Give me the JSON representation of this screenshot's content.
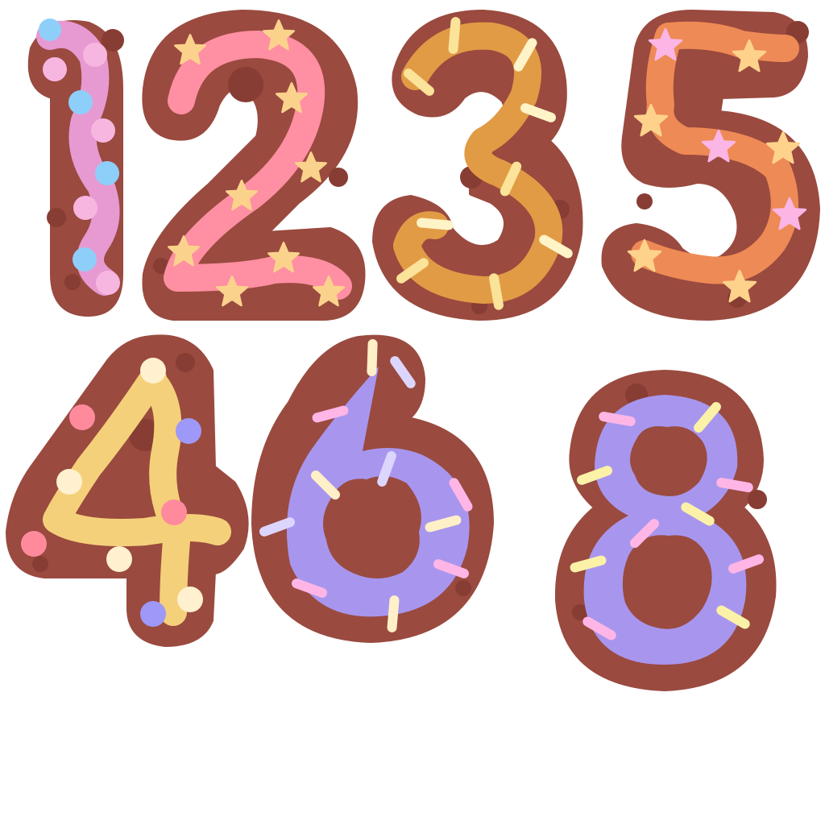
{
  "image": {
    "description_free": true
  },
  "palette": {
    "cookie": "#9A4A3F",
    "cookie_spot": "#873D33",
    "background": "#FFFFFF"
  },
  "numerals": [
    {
      "char": "1",
      "icing": "#E79AD1",
      "topping": "dots",
      "topping_colors": [
        "#8ECFFA",
        "#F7B6E0"
      ]
    },
    {
      "char": "2",
      "icing": "#FF8FA2",
      "topping": "stars",
      "topping_colors": [
        "#FBD28C"
      ]
    },
    {
      "char": "3",
      "icing": "#E29B45",
      "topping": "sprinkles",
      "topping_colors": [
        "#FBE39A",
        "#FFF3C8"
      ]
    },
    {
      "char": "5",
      "icing": "#EE8A55",
      "topping": "stars",
      "topping_colors": [
        "#FFD28C",
        "#FBB6E6"
      ]
    },
    {
      "char": "4",
      "icing": "#F5D07A",
      "topping": "dots",
      "topping_colors": [
        "#FF8A9C",
        "#FFF0CF",
        "#9E98F8"
      ]
    },
    {
      "char": "6",
      "icing": "#A896EE",
      "topping": "sprinkles",
      "topping_colors": [
        "#FFB6E6",
        "#FFF0C8",
        "#DCD6FF"
      ]
    },
    {
      "char": "8",
      "icing": "#A896EE",
      "topping": "sprinkles",
      "topping_colors": [
        "#FFB6E6",
        "#FBF2A8"
      ]
    }
  ]
}
